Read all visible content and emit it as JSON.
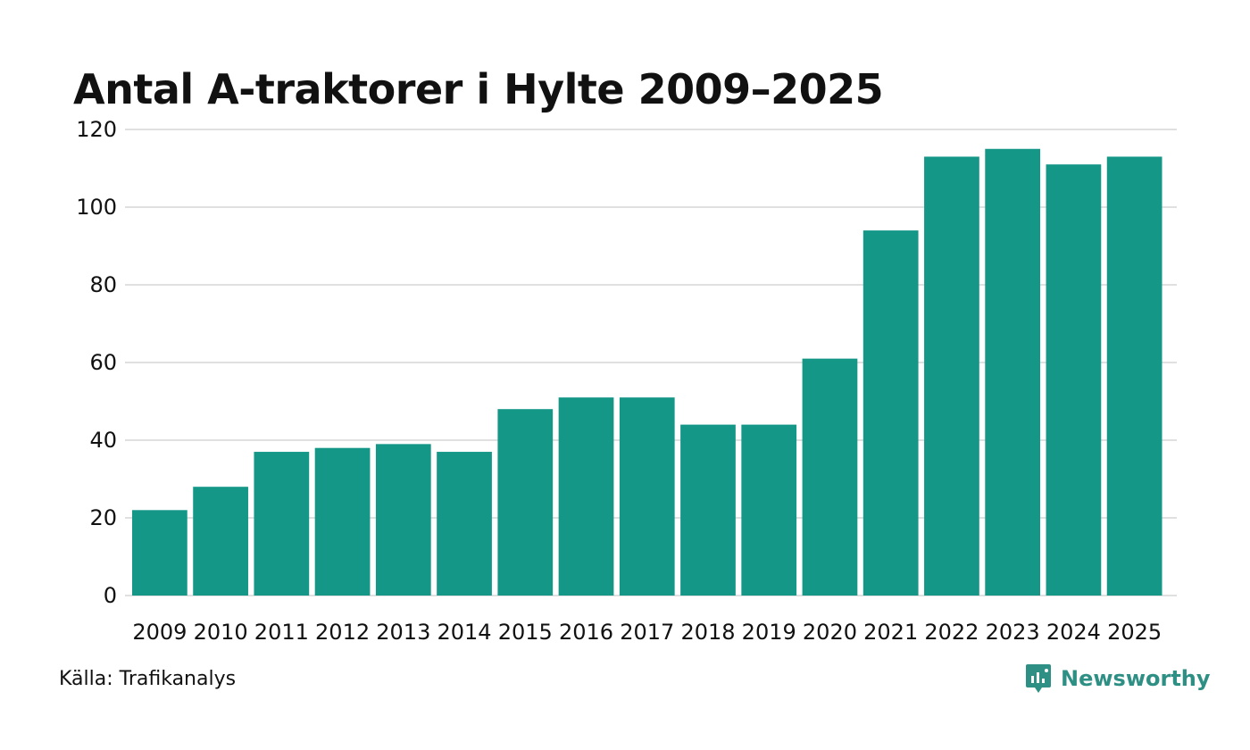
{
  "chart_data": {
    "type": "bar",
    "title": "Antal A-traktorer i Hylte 2009–2025",
    "categories": [
      "2009",
      "2010",
      "2011",
      "2012",
      "2013",
      "2014",
      "2015",
      "2016",
      "2017",
      "2018",
      "2019",
      "2020",
      "2021",
      "2022",
      "2023",
      "2024",
      "2025"
    ],
    "values": [
      22,
      28,
      37,
      38,
      39,
      37,
      48,
      51,
      51,
      44,
      44,
      61,
      94,
      113,
      115,
      111,
      113
    ],
    "y_ticks": [
      "0",
      "20",
      "40",
      "60",
      "80",
      "100",
      "120"
    ],
    "ylim": [
      0,
      120
    ],
    "xlabel": "",
    "ylabel": "",
    "grid": true,
    "bar_color": "#159788",
    "grid_color": "#e0e0e0"
  },
  "source": "Källa: Trafikanalys",
  "brand": {
    "name": "Newsworthy",
    "icon": "newsworthy-logo-icon",
    "color": "#2e8f84"
  }
}
